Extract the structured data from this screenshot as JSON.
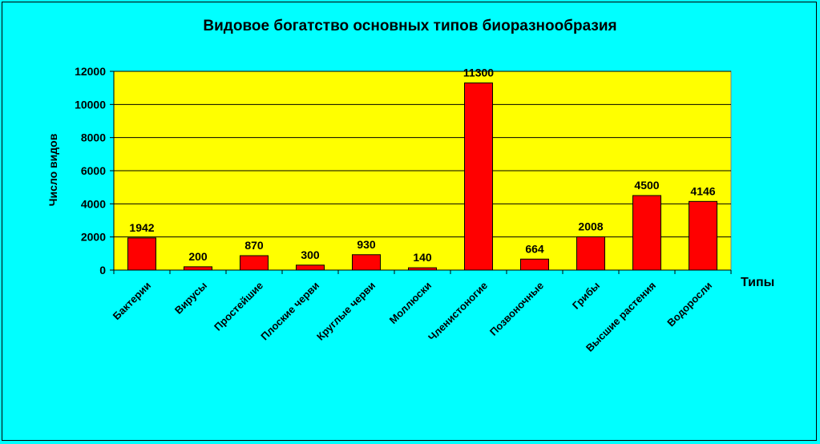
{
  "chart_data": {
    "type": "bar",
    "title": "Видовое богатство основных типов биоразнообразия",
    "xlabel": "Типы",
    "ylabel": "Число видов",
    "categories": [
      "Бактерии",
      "Вирусы",
      "Простейшие",
      "Плоские черви",
      "Круглые черви",
      "Моллюски",
      "Членистоногие",
      "Позвоночные",
      "Грибы",
      "Высшие растения",
      "Водоросли"
    ],
    "values": [
      1942,
      200,
      870,
      300,
      930,
      140,
      11300,
      664,
      2008,
      4500,
      4146
    ],
    "data_labels": [
      "1942",
      "200",
      "870",
      "300",
      "930",
      "140",
      "11300",
      "664",
      "2008",
      "4500",
      "4146"
    ],
    "yticks": [
      0,
      2000,
      4000,
      6000,
      8000,
      10000,
      12000
    ],
    "ylim": [
      0,
      12000
    ],
    "grid": true,
    "colors": {
      "background": "#00FFFF",
      "plot_area": "#FFFF00",
      "bar": "#FF0000",
      "bar_edge": "#000000"
    }
  }
}
